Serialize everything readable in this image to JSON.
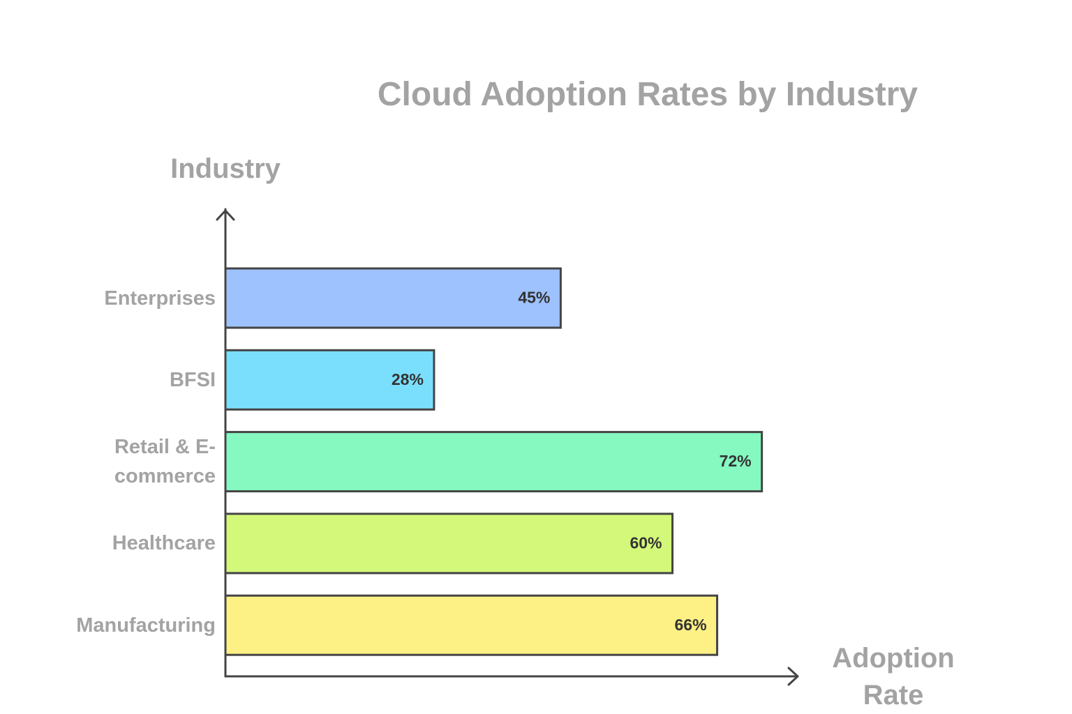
{
  "chart_data": {
    "type": "hbar",
    "title": "Cloud Adoption Rates by Industry",
    "x_label": "Adoption Rate",
    "y_label": "Industry",
    "categories": [
      "Enterprises",
      "BFSI",
      "Retail & E-commerce",
      "Healthcare",
      "Manufacturing"
    ],
    "values": [
      45,
      28,
      72,
      60,
      66
    ],
    "value_labels": [
      "45%",
      "28%",
      "72%",
      "60%",
      "66%"
    ],
    "colors": [
      "#9ec2fd",
      "#7adffd",
      "#85f9c0",
      "#d4f87a",
      "#fdf085"
    ],
    "xlim": [
      0,
      77
    ]
  }
}
